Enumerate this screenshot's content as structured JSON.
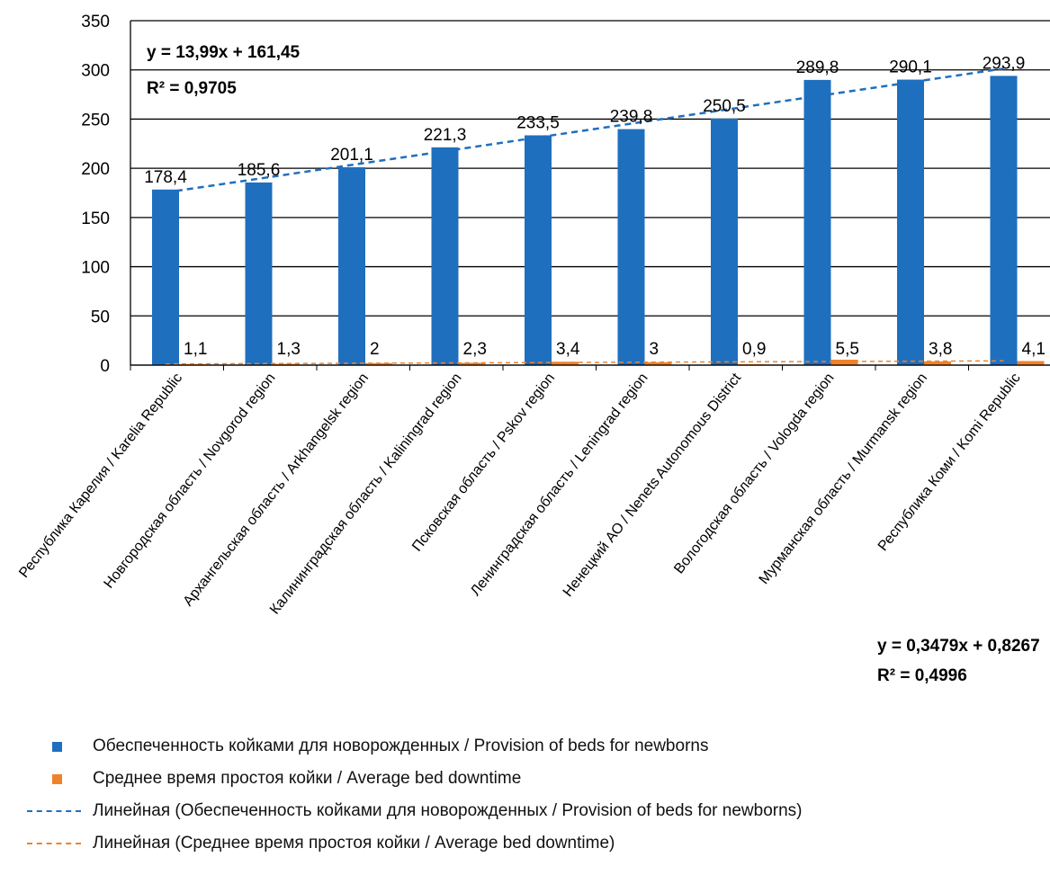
{
  "chart_data": {
    "type": "bar",
    "categories": [
      "Республика Карелия / Karelia Republic",
      "Новгородская область / Novgorod region",
      "Архангельская область / Arkhangelsk region",
      "Калининградская область / Kaliningrad region",
      "Псковская область / Pskov region",
      "Ленинградская область / Leningrad region",
      "Ненецкий АО / Nenets Autonomous District",
      "Вологодская область / Vologda region",
      "Мурманская область / Murmansk region",
      "Республика Коми / Komi Republic"
    ],
    "series": [
      {
        "name": "Обеспеченность койками для новорожденных / Provision of beds for newborns",
        "values": [
          178.4,
          185.6,
          201.1,
          221.3,
          233.5,
          239.8,
          250.5,
          289.8,
          290.1,
          293.9
        ],
        "labels": [
          "178,4",
          "185,6",
          "201,1",
          "221,3",
          "233,5",
          "239,8",
          "250,5",
          "289,8",
          "290,1",
          "293,9"
        ],
        "color": "#1f6fbf"
      },
      {
        "name": "Среднее время простоя койки / Average bed downtime",
        "values": [
          1.1,
          1.3,
          2,
          2.3,
          3.4,
          3,
          0.9,
          5.5,
          3.8,
          4.1
        ],
        "labels": [
          "1,1",
          "1,3",
          "2",
          "2,3",
          "3,4",
          "3",
          "0,9",
          "5,5",
          "3,8",
          "4,1"
        ],
        "color": "#f0822a"
      }
    ],
    "trendlines": [
      {
        "name": "Линейная (Обеспеченность койками для новорожденных / Provision of beds for newborns)",
        "slope": 13.99,
        "intercept": 161.45,
        "equation": "y = 13,99x + 161,45",
        "r2": "R² = 0,9705",
        "color": "#1f6fbf"
      },
      {
        "name": "Линейная (Среднее время простоя койки / Average bed downtime)",
        "slope": 0.3479,
        "intercept": 0.8267,
        "equation": "y = 0,3479x + 0,8267",
        "r2": "R² = 0,4996",
        "color": "#f0822a"
      }
    ],
    "yticks": [
      "0",
      "50",
      "100",
      "150",
      "200",
      "250",
      "300",
      "350"
    ],
    "ylim": [
      0,
      350
    ],
    "grid": true,
    "legend_position": "bottom-left"
  }
}
